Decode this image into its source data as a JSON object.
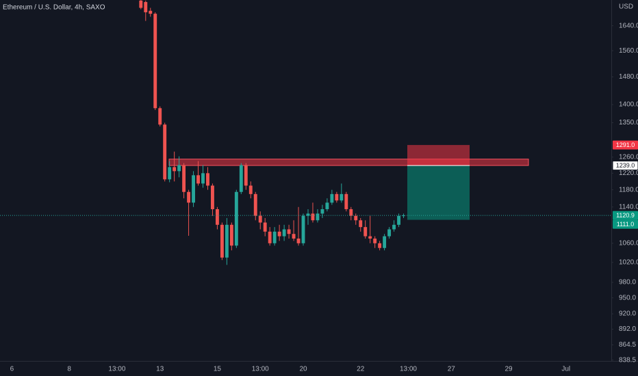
{
  "chart_data": {
    "type": "candlestick",
    "title": "Ethereum / U.S. Dollar, 4h, SAXO",
    "currency": "USD",
    "log_scale": true,
    "grid": false,
    "up_color": "#26a69a",
    "down_color": "#ef5350",
    "ylim": [
      837,
      1727
    ],
    "yticks": [
      {
        "value": 1640,
        "label": "1640.0"
      },
      {
        "value": 1560,
        "label": "1560.0"
      },
      {
        "value": 1480,
        "label": "1480.0"
      },
      {
        "value": 1400,
        "label": "1400.0"
      },
      {
        "value": 1350,
        "label": "1350.0"
      },
      {
        "value": 1260,
        "label": "1260.0"
      },
      {
        "value": 1220,
        "label": "1220.0"
      },
      {
        "value": 1180,
        "label": "1180.0"
      },
      {
        "value": 1140,
        "label": "1140.0"
      },
      {
        "value": 1060,
        "label": "1060.0"
      },
      {
        "value": 1020,
        "label": "1020.0"
      },
      {
        "value": 980,
        "label": "980.0"
      },
      {
        "value": 950,
        "label": "950.0"
      },
      {
        "value": 920,
        "label": "920.0"
      },
      {
        "value": 892,
        "label": "892.0"
      },
      864.5,
      838.5
    ],
    "categories": [
      null,
      null,
      "6",
      null,
      null,
      null,
      null,
      null,
      null,
      null,
      null,
      null,
      null,
      null,
      "8",
      null,
      null,
      null,
      null,
      null,
      null,
      null,
      null,
      null,
      "13:00",
      null,
      null,
      null,
      null,
      null,
      null,
      null,
      null,
      "13",
      null,
      null,
      null,
      null,
      null,
      null,
      null,
      null,
      null,
      null,
      null,
      "15",
      null,
      null,
      null,
      null,
      null,
      null,
      null,
      null,
      "13:00",
      null,
      null,
      null,
      null,
      null,
      null,
      null,
      null,
      "20",
      null,
      null,
      null,
      null,
      null,
      null,
      null,
      null,
      null,
      null,
      null,
      "22",
      null,
      null,
      null,
      null,
      null,
      null,
      null,
      null,
      null,
      "13:00",
      null,
      null,
      null,
      null,
      null,
      null,
      null,
      null,
      "27",
      null,
      null,
      null,
      null,
      null,
      null,
      null,
      null,
      null,
      null,
      null,
      "29",
      null,
      null,
      null,
      null,
      null,
      null,
      null,
      null,
      null,
      null,
      null,
      "Jul",
      null,
      null,
      null,
      null,
      null,
      null,
      null,
      null,
      null
    ],
    "open": [
      null,
      null,
      null,
      null,
      null,
      null,
      null,
      null,
      null,
      null,
      null,
      null,
      null,
      null,
      null,
      null,
      null,
      null,
      null,
      null,
      null,
      null,
      null,
      null,
      null,
      null,
      null,
      null,
      null,
      1725,
      1720,
      1690,
      1680,
      1390,
      1345,
      1205,
      1235,
      1225,
      1240,
      1175,
      1150,
      1215,
      1195,
      1220,
      1190,
      1135,
      1100,
      1030,
      1100,
      1055,
      1175,
      1240,
      1190,
      1170,
      1120,
      1105,
      1085,
      1060,
      1085,
      1075,
      1090,
      1080,
      1070,
      1060,
      1120,
      1125,
      1110,
      1125,
      1135,
      1150,
      1170,
      1155,
      1170,
      1135,
      1120,
      1110,
      1095,
      1075,
      1070,
      1060,
      1050,
      1075,
      1090,
      1100,
      1120,
      null,
      null,
      null,
      null,
      null,
      null,
      null,
      null,
      null,
      null,
      null,
      null,
      null,
      null,
      null,
      null,
      null,
      null,
      null,
      null,
      null,
      null,
      null,
      null,
      null,
      null,
      null,
      null,
      null,
      null,
      null,
      null,
      null,
      null,
      null,
      null,
      null,
      null,
      null,
      null,
      null,
      null,
      null
    ],
    "high": [
      null,
      null,
      null,
      null,
      null,
      null,
      null,
      null,
      null,
      null,
      null,
      null,
      null,
      null,
      null,
      null,
      null,
      null,
      null,
      null,
      null,
      null,
      null,
      null,
      null,
      null,
      null,
      null,
      null,
      1727,
      1725,
      1700,
      1685,
      1395,
      1350,
      1250,
      1274,
      1262,
      1245,
      1180,
      1225,
      1250,
      1240,
      1235,
      1195,
      1140,
      1105,
      1115,
      1105,
      1180,
      1245,
      1245,
      1200,
      1175,
      1130,
      1115,
      1095,
      1095,
      1100,
      1100,
      1100,
      1110,
      1140,
      1125,
      1135,
      1150,
      1135,
      1145,
      1160,
      1180,
      1175,
      1195,
      1175,
      1140,
      1125,
      1115,
      1110,
      1120,
      1075,
      1065,
      1080,
      1095,
      1110,
      1125,
      1125,
      null,
      null,
      null,
      null,
      null,
      null,
      null,
      null,
      null,
      null,
      null,
      null,
      null,
      null,
      null,
      null,
      null,
      null,
      null,
      null,
      null,
      null,
      null,
      null,
      null,
      null,
      null,
      null,
      null,
      null,
      null,
      null,
      null,
      null,
      null,
      null,
      null,
      null,
      null,
      null,
      null,
      null,
      null
    ],
    "low": [
      null,
      null,
      null,
      null,
      null,
      null,
      null,
      null,
      null,
      null,
      null,
      null,
      null,
      null,
      null,
      null,
      null,
      null,
      null,
      null,
      null,
      null,
      null,
      null,
      null,
      null,
      null,
      null,
      null,
      1695,
      1656,
      1670,
      1385,
      1340,
      1200,
      1198,
      1200,
      1210,
      1160,
      1076,
      1140,
      1190,
      1185,
      1180,
      1120,
      1090,
      1025,
      1015,
      1045,
      1050,
      1170,
      1180,
      1160,
      1110,
      1090,
      1075,
      1055,
      1055,
      1065,
      1065,
      1070,
      1065,
      1055,
      1055,
      1100,
      1105,
      1105,
      1115,
      1130,
      1145,
      1150,
      1150,
      1130,
      1110,
      1100,
      1085,
      1070,
      1060,
      1050,
      1045,
      1045,
      1070,
      1085,
      1095,
      1115,
      null,
      null,
      null,
      null,
      null,
      null,
      null,
      null,
      null,
      null,
      null,
      null,
      null,
      null,
      null,
      null,
      null,
      null,
      null,
      null,
      null,
      null,
      null,
      null,
      null,
      null,
      null,
      null,
      null,
      null,
      null,
      null,
      null,
      null,
      null,
      null,
      null,
      null,
      null,
      null,
      null,
      null,
      null
    ],
    "close": [
      null,
      null,
      null,
      null,
      null,
      null,
      null,
      null,
      null,
      null,
      null,
      null,
      null,
      null,
      null,
      null,
      null,
      null,
      null,
      null,
      null,
      null,
      null,
      null,
      null,
      null,
      null,
      null,
      null,
      1700,
      1685,
      1680,
      1390,
      1345,
      1205,
      1235,
      1225,
      1240,
      1175,
      1150,
      1215,
      1195,
      1220,
      1190,
      1135,
      1100,
      1030,
      1100,
      1055,
      1175,
      1240,
      1190,
      1170,
      1120,
      1105,
      1085,
      1060,
      1085,
      1075,
      1090,
      1080,
      1070,
      1060,
      1120,
      1125,
      1110,
      1125,
      1135,
      1150,
      1170,
      1155,
      1170,
      1135,
      1120,
      1110,
      1095,
      1075,
      1070,
      1060,
      1050,
      1075,
      1090,
      1100,
      1120,
      1120.9,
      null,
      null,
      null,
      null,
      null,
      null,
      null,
      null,
      null,
      null,
      null,
      null,
      null,
      null,
      null,
      null,
      null,
      null,
      null,
      null,
      null,
      null,
      null,
      null,
      null,
      null,
      null,
      null,
      null,
      null,
      null,
      null,
      null,
      null,
      null,
      null,
      null,
      null,
      null,
      null,
      null,
      null,
      null
    ],
    "zone": {
      "low": 1239,
      "high": 1255,
      "color": "#f23645"
    },
    "position": {
      "entry": 1239,
      "stop": 1291,
      "target": 1111,
      "stop_color": "#f23645",
      "target_color": "#089981"
    },
    "last_price": 1120.9,
    "price_labels": [
      {
        "value": 1291,
        "label": "1291.0",
        "color": "#f23645"
      },
      {
        "value": 1239,
        "label": "1239.0",
        "color": "#ffffff"
      },
      {
        "value": 1120.9,
        "label": "1120.9",
        "color": "#089981"
      },
      {
        "value": 1111,
        "label": "1111.0",
        "color": "#089981"
      }
    ]
  }
}
